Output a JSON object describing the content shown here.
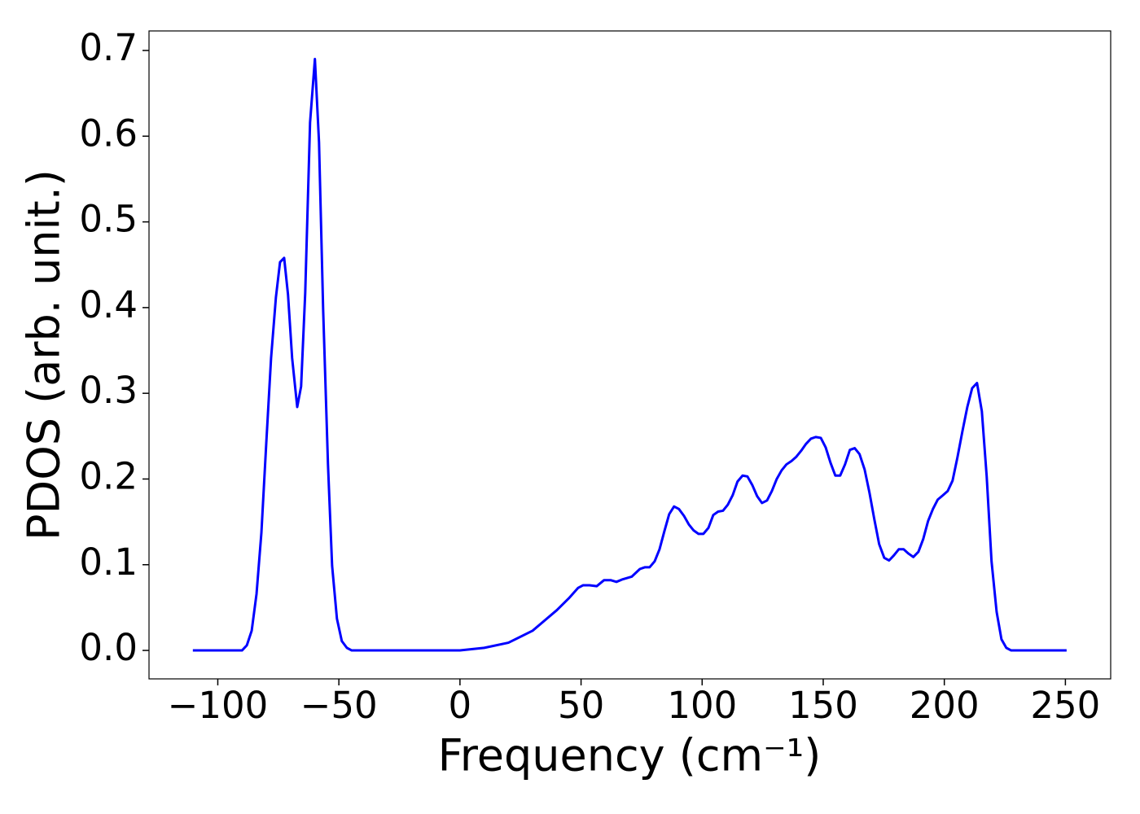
{
  "chart_data": {
    "type": "line",
    "xlabel": "Frequency (cm⁻¹)",
    "ylabel": "PDOS (arb. unit.)",
    "x": [
      -110.3,
      -90,
      -88,
      -86,
      -84,
      -82,
      -80,
      -78,
      -76,
      -74.3,
      -72.6,
      -71,
      -69.3,
      -67.2,
      -65.6,
      -63.9,
      -61.9,
      -59.9,
      -58.2,
      -56.5,
      -54.5,
      -52.8,
      -50.8,
      -48.8,
      -46.7,
      -44.7,
      0,
      10,
      20,
      30,
      40,
      45,
      48.8,
      50.8,
      53.5,
      56.5,
      59.5,
      62.2,
      64.6,
      67.2,
      70.9,
      74.3,
      76.3,
      78.3,
      80.4,
      82.4,
      84.4,
      86.4,
      88.4,
      90.4,
      92.5,
      94.5,
      96.5,
      98.5,
      100.5,
      102.6,
      104.6,
      106.6,
      108.6,
      110.6,
      112.6,
      114.6,
      116.7,
      118.7,
      120.7,
      122.7,
      124.7,
      126.8,
      128.8,
      130.8,
      132.8,
      134.8,
      136.9,
      138.9,
      140.9,
      142.9,
      144.9,
      146.9,
      149,
      151,
      153,
      155,
      157,
      159,
      161,
      163,
      165,
      167.1,
      169.1,
      171.1,
      173.1,
      175.2,
      177.2,
      179.2,
      181.2,
      183.2,
      185.2,
      187.2,
      189.3,
      191.3,
      193.3,
      195.3,
      197.3,
      199.4,
      201.4,
      203.4,
      205.4,
      207.5,
      209.5,
      211.5,
      213.5,
      215.5,
      217.5,
      219.5,
      221.6,
      223.6,
      225.6,
      227.6,
      250.5
    ],
    "series": [
      {
        "name": "PDOS",
        "color": "#0000ff",
        "values": [
          0,
          0,
          0.006,
          0.023,
          0.066,
          0.137,
          0.241,
          0.341,
          0.412,
          0.453,
          0.458,
          0.415,
          0.341,
          0.284,
          0.308,
          0.417,
          0.616,
          0.69,
          0.593,
          0.398,
          0.217,
          0.099,
          0.037,
          0.011,
          0.003,
          0,
          0,
          0.003,
          0.009,
          0.023,
          0.047,
          0.061,
          0.073,
          0.076,
          0.076,
          0.075,
          0.082,
          0.082,
          0.08,
          0.083,
          0.086,
          0.095,
          0.097,
          0.097,
          0.104,
          0.118,
          0.139,
          0.159,
          0.168,
          0.165,
          0.157,
          0.147,
          0.14,
          0.136,
          0.136,
          0.143,
          0.158,
          0.162,
          0.163,
          0.17,
          0.181,
          0.197,
          0.204,
          0.203,
          0.193,
          0.18,
          0.172,
          0.175,
          0.186,
          0.2,
          0.21,
          0.217,
          0.221,
          0.226,
          0.233,
          0.241,
          0.247,
          0.249,
          0.248,
          0.237,
          0.219,
          0.204,
          0.204,
          0.217,
          0.234,
          0.236,
          0.229,
          0.211,
          0.184,
          0.153,
          0.124,
          0.108,
          0.105,
          0.111,
          0.118,
          0.118,
          0.113,
          0.109,
          0.115,
          0.13,
          0.151,
          0.165,
          0.176,
          0.181,
          0.186,
          0.198,
          0.225,
          0.256,
          0.284,
          0.306,
          0.312,
          0.279,
          0.203,
          0.104,
          0.045,
          0.013,
          0.003,
          0,
          0
        ]
      }
    ],
    "xlim": [
      -128.4,
      268.7
    ],
    "xticks": [
      {
        "value": -100,
        "label": "−100"
      },
      {
        "value": -50,
        "label": "−50"
      },
      0,
      50,
      100,
      150,
      200,
      250
    ],
    "ylim": [
      -0.0332,
      0.7228
    ],
    "yticks": [
      {
        "value": 0,
        "label": "0.0"
      },
      0.1,
      0.2,
      0.3,
      0.4,
      0.5,
      0.6,
      0.7
    ],
    "grid": false
  }
}
